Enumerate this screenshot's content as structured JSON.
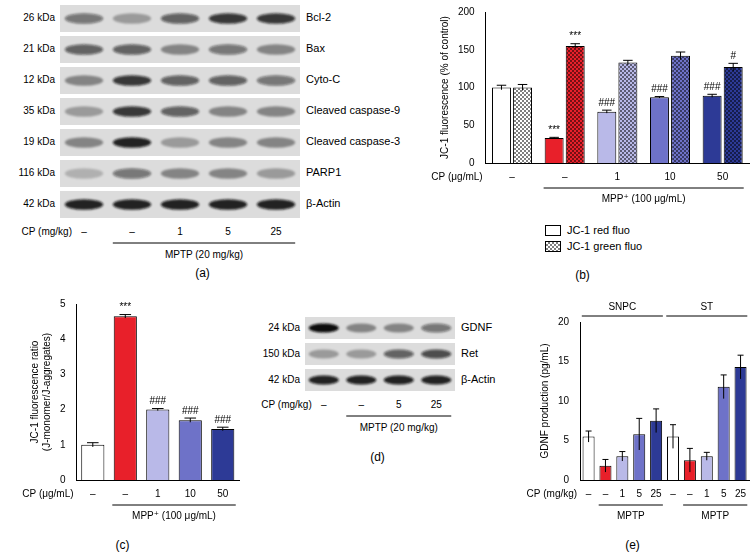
{
  "chart_data": [
    {
      "type": "bar",
      "panel_label": "(b)",
      "y_label": "JC-1 fluorescence (% of control)",
      "categories": [
        "–",
        "–",
        "1",
        "10",
        "50"
      ],
      "category_label": "CP (μg/mL)",
      "group_label": "MPP⁺ (100 μg/mL)",
      "ylim": [
        0,
        200
      ],
      "yticks": [
        0,
        50,
        100,
        150,
        200
      ],
      "colors": [
        "#ffffff",
        "#e8202a",
        "#b9b9e8",
        "#6e72c8",
        "#2d3a96"
      ],
      "legend": "bottom",
      "series": [
        {
          "name": "JC-1 red fluo",
          "marker": "solid",
          "values": [
            100,
            33,
            68,
            87,
            89
          ],
          "errors": [
            3,
            1,
            2,
            1,
            2
          ],
          "annotations": [
            null,
            "***",
            "###",
            "###",
            "###"
          ]
        },
        {
          "name": "JC-1 green fluo",
          "marker": "checkered",
          "values": [
            100,
            155,
            133,
            142,
            127
          ],
          "errors": [
            4,
            3,
            3,
            5,
            5
          ],
          "annotations": [
            null,
            "***",
            null,
            null,
            "#"
          ]
        }
      ]
    },
    {
      "type": "bar",
      "panel_label": "(c)",
      "y_label": [
        "JC-1 fluorescence ratio",
        "(J-monomer/J-aggregates)"
      ],
      "categories": [
        "–",
        "–",
        "1",
        "10",
        "50"
      ],
      "category_label": "CP (μg/mL)",
      "group_label": "MPP⁺ (100 μg/mL)",
      "ylim": [
        0,
        5
      ],
      "yticks": [
        0,
        1,
        2,
        3,
        4,
        5
      ],
      "colors": [
        "#ffffff",
        "#e8202a",
        "#b9b9e8",
        "#6e72c8",
        "#2d3a96"
      ],
      "values": [
        1.0,
        4.65,
        2.0,
        1.7,
        1.45
      ],
      "errors": [
        0.06,
        0.05,
        0.03,
        0.06,
        0.05
      ],
      "annotations": [
        null,
        "***",
        "###",
        "###",
        "###"
      ]
    },
    {
      "type": "bar",
      "panel_label": "(e)",
      "y_label": "GDNF production (pg/mL)",
      "categories": [
        "–",
        "–",
        "1",
        "5",
        "25",
        "–",
        "–",
        "1",
        "5",
        "25"
      ],
      "category_label": "CP (mg/kg)",
      "groups": [
        "SNPC",
        "ST"
      ],
      "group_label": "MPTP",
      "ylim": [
        0,
        20
      ],
      "yticks": [
        0,
        5,
        10,
        15,
        20
      ],
      "colors": [
        "#ffffff",
        "#e8202a",
        "#b9b9e8",
        "#6e72c8",
        "#2d3a96",
        "#ffffff",
        "#e8202a",
        "#b9b9e8",
        "#6e72c8",
        "#2d3a96"
      ],
      "values": [
        5.5,
        1.8,
        3.0,
        5.8,
        7.5,
        5.5,
        2.5,
        3.0,
        11.8,
        14.3
      ],
      "errors": [
        0.7,
        0.8,
        0.6,
        2.0,
        1.5,
        1.5,
        1.5,
        0.5,
        1.5,
        1.5
      ]
    }
  ],
  "blots": [
    {
      "panel_label": "(a)",
      "lanes": [
        "–",
        "–",
        "1",
        "5",
        "25"
      ],
      "lane_label": "CP (mg/kg)",
      "group_label": "MPTP (20 mg/kg)",
      "rows": [
        {
          "name": "Bcl-2",
          "size": "26 kDa",
          "intensity": [
            0.5,
            0.3,
            0.6,
            0.8,
            0.8
          ]
        },
        {
          "name": "Bax",
          "size": "21 kDa",
          "intensity": [
            0.6,
            0.6,
            0.4,
            0.5,
            0.4
          ]
        },
        {
          "name": "Cyto-C",
          "size": "12 kDa",
          "intensity": [
            0.4,
            0.8,
            0.6,
            0.6,
            0.5
          ]
        },
        {
          "name": "Cleaved caspase-9",
          "size": "35 kDa",
          "intensity": [
            0.3,
            0.8,
            0.6,
            0.4,
            0.4
          ]
        },
        {
          "name": "Cleaved caspase-3",
          "size": "19 kDa",
          "intensity": [
            0.4,
            0.9,
            0.3,
            0.4,
            0.4
          ]
        },
        {
          "name": "PARP1",
          "size": "116 kDa",
          "intensity": [
            0.2,
            0.5,
            0.4,
            0.4,
            0.3
          ]
        },
        {
          "name": "β-Actin",
          "size": "42 kDa",
          "intensity": [
            0.9,
            0.9,
            0.9,
            0.9,
            0.9
          ]
        }
      ]
    },
    {
      "panel_label": "(d)",
      "lanes": [
        "–",
        "–",
        "5",
        "25"
      ],
      "lane_label": "CP (mg/kg)",
      "group_label": "MPTP (20 mg/kg)",
      "rows": [
        {
          "name": "GDNF",
          "size": "24 kDa",
          "intensity": [
            1.0,
            0.4,
            0.4,
            0.5
          ]
        },
        {
          "name": "Ret",
          "size": "150 kDa",
          "intensity": [
            0.3,
            0.3,
            0.6,
            0.7
          ]
        },
        {
          "name": "β-Actin",
          "size": "42 kDa",
          "intensity": [
            0.9,
            0.9,
            0.9,
            0.9
          ]
        }
      ]
    }
  ]
}
